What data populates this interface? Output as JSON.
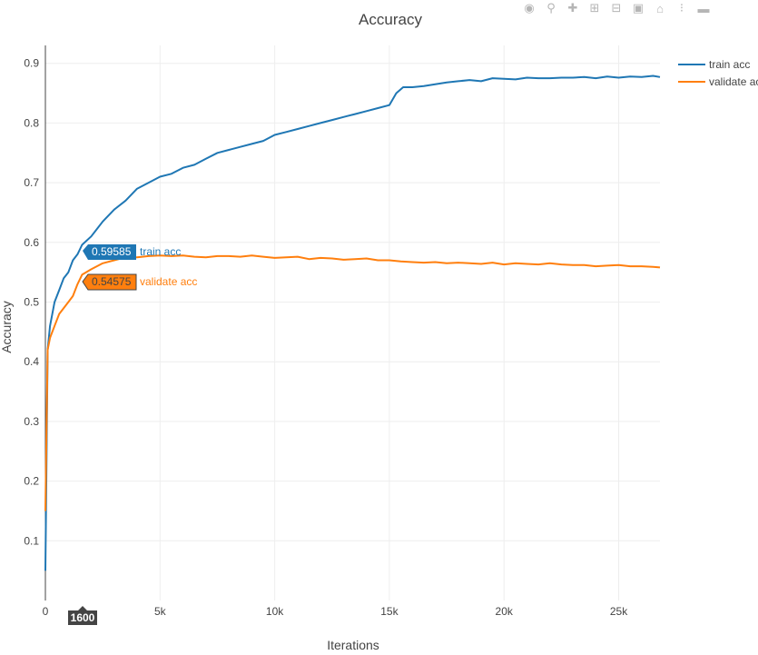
{
  "modebar": {
    "buttons": [
      "camera-icon",
      "zoom-icon",
      "pan-icon",
      "zoom-in-icon",
      "zoom-out-icon",
      "autoscale-icon",
      "home-icon",
      "spike-lines-icon",
      "compare-hover-icon"
    ]
  },
  "hover": {
    "x_label": "1600",
    "train_value": "0.59585",
    "train_name": "train acc",
    "validate_value": "0.54575",
    "validate_name": "validate acc"
  },
  "legend": {
    "items": [
      {
        "label": "train acc",
        "color": "#1f77b4"
      },
      {
        "label": "validate acc",
        "color": "#ff7f0e"
      }
    ]
  },
  "chart_data": {
    "type": "line",
    "title": "Accuracy",
    "xlabel": "Iterations",
    "ylabel": "Accuracy",
    "xlim": [
      0,
      26800
    ],
    "ylim": [
      0,
      0.93
    ],
    "x_ticks": [
      0,
      5000,
      10000,
      15000,
      20000,
      25000
    ],
    "x_tick_labels": [
      "0",
      "5k",
      "10k",
      "15k",
      "20k",
      "25k"
    ],
    "y_ticks": [
      0.1,
      0.2,
      0.3,
      0.4,
      0.5,
      0.6,
      0.7,
      0.8,
      0.9
    ],
    "y_tick_labels": [
      "0.1",
      "0.2",
      "0.3",
      "0.4",
      "0.5",
      "0.6",
      "0.7",
      "0.8",
      "0.9"
    ],
    "grid": true,
    "legend_position": "top-right",
    "series": [
      {
        "name": "train acc",
        "color": "#1f77b4",
        "x": [
          0,
          100,
          200,
          400,
          600,
          800,
          1000,
          1200,
          1400,
          1600,
          2000,
          2500,
          3000,
          3500,
          4000,
          4500,
          5000,
          5500,
          6000,
          6500,
          7000,
          7500,
          8000,
          8500,
          9000,
          9500,
          10000,
          10500,
          11000,
          11500,
          12000,
          12500,
          13000,
          13500,
          14000,
          14500,
          15000,
          15300,
          15600,
          16000,
          16500,
          17000,
          17500,
          18000,
          18500,
          19000,
          19500,
          20000,
          20500,
          21000,
          21500,
          22000,
          22500,
          23000,
          23500,
          24000,
          24500,
          25000,
          25500,
          26000,
          26500,
          26800
        ],
        "values": [
          0.05,
          0.42,
          0.46,
          0.5,
          0.52,
          0.54,
          0.55,
          0.57,
          0.58,
          0.59585,
          0.61,
          0.635,
          0.655,
          0.67,
          0.69,
          0.7,
          0.71,
          0.715,
          0.725,
          0.73,
          0.74,
          0.75,
          0.755,
          0.76,
          0.765,
          0.77,
          0.78,
          0.785,
          0.79,
          0.795,
          0.8,
          0.805,
          0.81,
          0.815,
          0.82,
          0.825,
          0.83,
          0.85,
          0.86,
          0.86,
          0.862,
          0.865,
          0.868,
          0.87,
          0.872,
          0.87,
          0.875,
          0.874,
          0.873,
          0.876,
          0.875,
          0.875,
          0.876,
          0.876,
          0.877,
          0.875,
          0.878,
          0.876,
          0.878,
          0.877,
          0.879,
          0.877
        ]
      },
      {
        "name": "validate acc",
        "color": "#ff7f0e",
        "x": [
          0,
          100,
          200,
          400,
          600,
          800,
          1000,
          1200,
          1400,
          1600,
          2000,
          2500,
          3000,
          3500,
          4000,
          4500,
          5000,
          5500,
          6000,
          6500,
          7000,
          7500,
          8000,
          8500,
          9000,
          9500,
          10000,
          10500,
          11000,
          11500,
          12000,
          12500,
          13000,
          13500,
          14000,
          14500,
          15000,
          15500,
          16000,
          16500,
          17000,
          17500,
          18000,
          18500,
          19000,
          19500,
          20000,
          20500,
          21000,
          21500,
          22000,
          22500,
          23000,
          23500,
          24000,
          24500,
          25000,
          25500,
          26000,
          26500,
          26800
        ],
        "values": [
          0.15,
          0.42,
          0.44,
          0.46,
          0.48,
          0.49,
          0.5,
          0.51,
          0.53,
          0.54575,
          0.555,
          0.565,
          0.57,
          0.575,
          0.575,
          0.577,
          0.578,
          0.577,
          0.578,
          0.576,
          0.575,
          0.577,
          0.577,
          0.576,
          0.578,
          0.576,
          0.574,
          0.575,
          0.576,
          0.572,
          0.574,
          0.573,
          0.571,
          0.572,
          0.573,
          0.57,
          0.57,
          0.568,
          0.567,
          0.566,
          0.567,
          0.565,
          0.566,
          0.565,
          0.564,
          0.566,
          0.563,
          0.565,
          0.564,
          0.563,
          0.565,
          0.563,
          0.562,
          0.562,
          0.56,
          0.561,
          0.562,
          0.56,
          0.56,
          0.559,
          0.558
        ]
      }
    ]
  }
}
